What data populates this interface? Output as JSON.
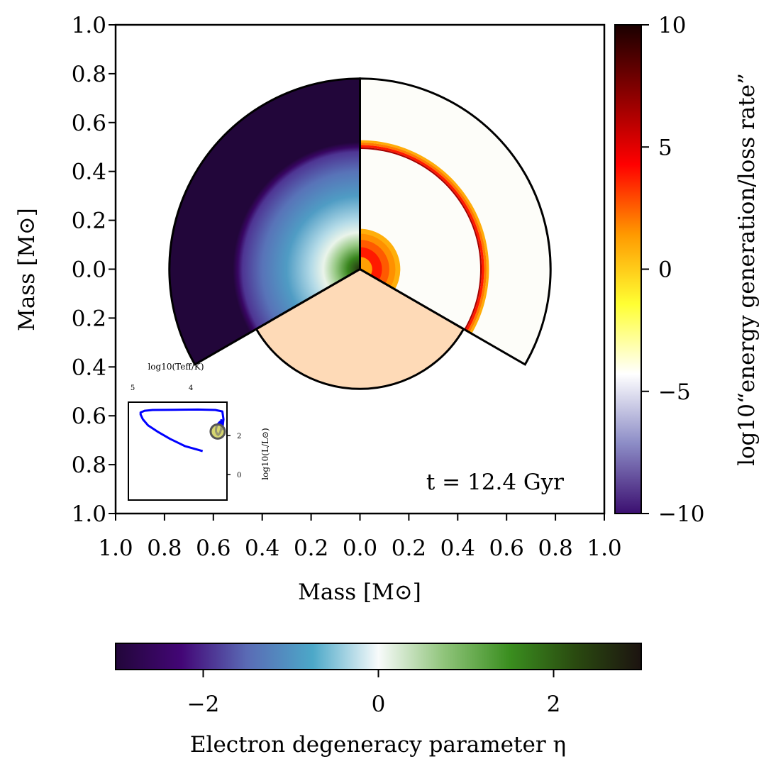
{
  "chart_data": {
    "type": "stellar-kippenhahn-pie",
    "annotation": "t = 12.4 Gyr",
    "xlabel": "Mass [M⊙]",
    "ylabel": "Mass [M⊙]",
    "xlim": [
      -1.0,
      1.0
    ],
    "ylim": [
      -1.0,
      1.0
    ],
    "x_tick_labels": [
      "1.0",
      "0.8",
      "0.6",
      "0.4",
      "0.2",
      "0.0",
      "0.2",
      "0.4",
      "0.6",
      "0.8",
      "1.0"
    ],
    "y_tick_labels": [
      "1.0",
      "0.8",
      "0.6",
      "0.4",
      "0.2",
      "0.0",
      "0.2",
      "0.4",
      "0.6",
      "0.8",
      "1.0"
    ],
    "star": {
      "total_mass": 0.78,
      "core_mass": 0.5,
      "envelope_radius_in_bottom_sector": 0.49
    },
    "sectors": [
      {
        "name": "electron-degeneracy",
        "quantity": "eta",
        "theta_start_deg": 90,
        "theta_end_deg": 210
      },
      {
        "name": "energy-generation",
        "quantity": "log10 energy generation/loss rate",
        "theta_start_deg": -30,
        "theta_end_deg": 90
      },
      {
        "name": "composition",
        "quantity": "fill",
        "theta_start_deg": 210,
        "theta_end_deg": 330,
        "color": "#fedab7"
      }
    ],
    "eta_profile": [
      {
        "m": 0.0,
        "eta": 2.6
      },
      {
        "m": 0.05,
        "eta": 1.6
      },
      {
        "m": 0.1,
        "eta": 0.7
      },
      {
        "m": 0.15,
        "eta": 0.1
      },
      {
        "m": 0.2,
        "eta": -0.3
      },
      {
        "m": 0.3,
        "eta": -0.9
      },
      {
        "m": 0.4,
        "eta": -1.4
      },
      {
        "m": 0.48,
        "eta": -1.9
      },
      {
        "m": 0.5,
        "eta": -2.5
      },
      {
        "m": 0.52,
        "eta": -3.0
      },
      {
        "m": 0.78,
        "eta": -3.0
      }
    ],
    "energy_bands": [
      {
        "m_in": 0.0,
        "m_out": 0.05,
        "log_rate": 1.2
      },
      {
        "m_in": 0.05,
        "m_out": 0.09,
        "log_rate": 3.8
      },
      {
        "m_in": 0.09,
        "m_out": 0.12,
        "log_rate": 2.6
      },
      {
        "m_in": 0.12,
        "m_out": 0.145,
        "log_rate": 1.6
      },
      {
        "m_in": 0.145,
        "m_out": 0.165,
        "log_rate": 0.8
      },
      {
        "m_in": 0.492,
        "m_out": 0.498,
        "log_rate": 6.5
      },
      {
        "m_in": 0.498,
        "m_out": 0.508,
        "log_rate": 3.8
      },
      {
        "m_in": 0.508,
        "m_out": 0.518,
        "log_rate": 2.0
      },
      {
        "m_in": 0.518,
        "m_out": 0.528,
        "log_rate": 0.9
      }
    ],
    "colorbar_energy": {
      "label": "log10“energy generation/loss rate”",
      "range": [
        -10,
        10
      ],
      "ticks": [
        10,
        5,
        0,
        -5,
        -10
      ],
      "tick_labels": [
        "10",
        "5",
        "0",
        "−5",
        "−10"
      ],
      "stops": [
        "#3b0f70",
        "#8c8cc6",
        "#ffffff",
        "#ffff33",
        "#ff9900",
        "#ff0000",
        "#8b0000",
        "#1a0000"
      ]
    },
    "colorbar_eta": {
      "label": "Electron degeneracy parameter η",
      "range": [
        -3,
        3
      ],
      "ticks": [
        -2,
        0,
        2
      ],
      "tick_labels": [
        "−2",
        "0",
        "2"
      ],
      "stops": [
        "#22063a",
        "#430676",
        "#5a6bb5",
        "#4ca8c8",
        "#f8fbfb",
        "#8fc47a",
        "#3a8e1f",
        "#2a4a10",
        "#1c1310"
      ]
    },
    "inset_hr": {
      "xlabel": "log10(Teff/K)",
      "ylabel": "log10(L/L⊙)",
      "x_tick_labels": [
        "5",
        "4"
      ],
      "y_tick_labels": [
        "2",
        "0"
      ],
      "track_color": "#0000ff",
      "marker_color": "#c8c840",
      "track": [
        [
          3.92,
          1.3
        ],
        [
          4.22,
          1.5
        ],
        [
          4.48,
          1.8
        ],
        [
          4.7,
          2.1
        ],
        [
          4.86,
          2.35
        ],
        [
          4.95,
          2.6
        ],
        [
          4.99,
          2.8
        ],
        [
          4.99,
          2.88
        ],
        [
          4.92,
          2.95
        ],
        [
          4.78,
          2.98
        ],
        [
          4.4,
          2.99
        ],
        [
          4.0,
          3.0
        ],
        [
          3.7,
          2.98
        ],
        [
          3.58,
          2.92
        ],
        [
          3.56,
          2.6
        ],
        [
          3.58,
          2.2
        ],
        [
          3.6,
          2.4
        ],
        [
          3.62,
          2.5
        ],
        [
          3.64,
          2.45
        ],
        [
          3.66,
          2.4
        ],
        [
          3.68,
          2.3
        ],
        [
          3.69,
          2.2
        ],
        [
          3.69,
          2.1
        ],
        [
          3.67,
          2.0
        ],
        [
          3.65,
          1.96
        ],
        [
          3.62,
          2.05
        ],
        [
          3.6,
          2.2
        ],
        [
          3.59,
          2.45
        ],
        [
          3.6,
          2.6
        ]
      ],
      "current": [
        3.66,
        2.1
      ],
      "xlim": [
        5.2,
        3.5
      ],
      "ylim": [
        -0.7,
        3.3
      ]
    }
  }
}
